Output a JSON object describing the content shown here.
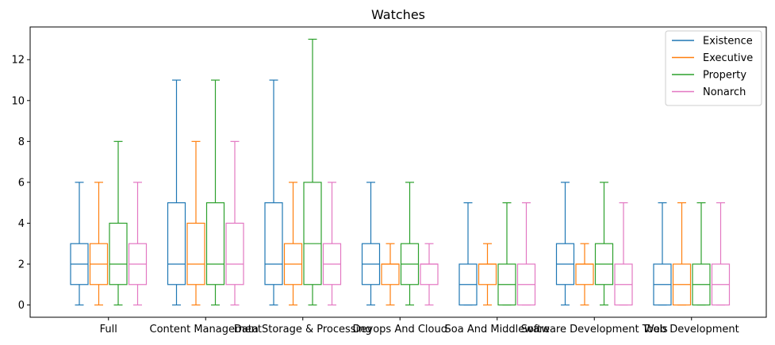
{
  "chart_data": {
    "type": "box",
    "title": "Watches",
    "xlabel": "",
    "ylabel": "",
    "ylim": [
      -0.6,
      13.6
    ],
    "yticks": [
      0,
      2,
      4,
      6,
      8,
      10,
      12
    ],
    "grid": false,
    "legend_position": "top-right",
    "categories": [
      "Full",
      "Content Management",
      "Data Storage & Processing",
      "Devops And Cloud",
      "Soa And Middleware",
      "Software Development Tools",
      "Web Development"
    ],
    "series": [
      {
        "name": "Existence",
        "color": "#1f77b4",
        "boxes": [
          {
            "min": 0,
            "q1": 1,
            "median": 2,
            "q3": 3,
            "max": 6
          },
          {
            "min": 0,
            "q1": 1,
            "median": 2,
            "q3": 5,
            "max": 11
          },
          {
            "min": 0,
            "q1": 1,
            "median": 2,
            "q3": 5,
            "max": 11
          },
          {
            "min": 0,
            "q1": 1,
            "median": 2,
            "q3": 3,
            "max": 6
          },
          {
            "min": 0,
            "q1": 0,
            "median": 1,
            "q3": 2,
            "max": 5
          },
          {
            "min": 0,
            "q1": 1,
            "median": 2,
            "q3": 3,
            "max": 6
          },
          {
            "min": 0,
            "q1": 0,
            "median": 1,
            "q3": 2,
            "max": 5
          }
        ]
      },
      {
        "name": "Executive",
        "color": "#ff7f0e",
        "boxes": [
          {
            "min": 0,
            "q1": 1,
            "median": 2,
            "q3": 3,
            "max": 6
          },
          {
            "min": 0,
            "q1": 1,
            "median": 2,
            "q3": 4,
            "max": 8
          },
          {
            "min": 0,
            "q1": 1,
            "median": 2,
            "q3": 3,
            "max": 6
          },
          {
            "min": 0,
            "q1": 1,
            "median": 2,
            "q3": 2,
            "max": 3
          },
          {
            "min": 0,
            "q1": 1,
            "median": 2,
            "q3": 2,
            "max": 3
          },
          {
            "min": 0,
            "q1": 1,
            "median": 2,
            "q3": 2,
            "max": 3
          },
          {
            "min": 0,
            "q1": 0,
            "median": 1,
            "q3": 2,
            "max": 5
          }
        ]
      },
      {
        "name": "Property",
        "color": "#2ca02c",
        "boxes": [
          {
            "min": 0,
            "q1": 1,
            "median": 2,
            "q3": 4,
            "max": 8
          },
          {
            "min": 0,
            "q1": 1,
            "median": 2,
            "q3": 5,
            "max": 11
          },
          {
            "min": 0,
            "q1": 1,
            "median": 3,
            "q3": 6,
            "max": 13
          },
          {
            "min": 0,
            "q1": 1,
            "median": 2,
            "q3": 3,
            "max": 6
          },
          {
            "min": 0,
            "q1": 0,
            "median": 1,
            "q3": 2,
            "max": 5
          },
          {
            "min": 0,
            "q1": 1,
            "median": 2,
            "q3": 3,
            "max": 6
          },
          {
            "min": 0,
            "q1": 0,
            "median": 1,
            "q3": 2,
            "max": 5
          }
        ]
      },
      {
        "name": "Nonarch",
        "color": "#e377c2",
        "boxes": [
          {
            "min": 0,
            "q1": 1,
            "median": 2,
            "q3": 3,
            "max": 6
          },
          {
            "min": 0,
            "q1": 1,
            "median": 2,
            "q3": 4,
            "max": 8
          },
          {
            "min": 0,
            "q1": 1,
            "median": 2,
            "q3": 3,
            "max": 6
          },
          {
            "min": 0,
            "q1": 1,
            "median": 2,
            "q3": 2,
            "max": 3
          },
          {
            "min": 0,
            "q1": 0,
            "median": 1,
            "q3": 2,
            "max": 5
          },
          {
            "min": 0,
            "q1": 0,
            "median": 1,
            "q3": 2,
            "max": 5
          },
          {
            "min": 0,
            "q1": 0,
            "median": 1,
            "q3": 2,
            "max": 5
          }
        ]
      }
    ]
  }
}
